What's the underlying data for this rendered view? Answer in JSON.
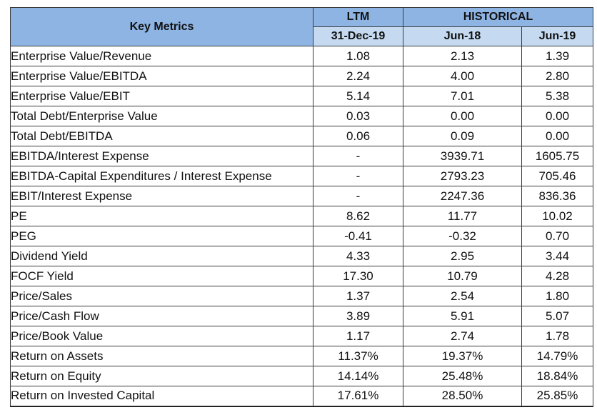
{
  "table": {
    "key_header": "Key Metrics",
    "group_ltm": "LTM",
    "group_historical": "HISTORICAL",
    "periods": [
      "31-Dec-19",
      "Jun-18",
      "Jun-19"
    ],
    "rows": [
      {
        "label": "Enterprise Value/Revenue",
        "values": [
          "1.08",
          "2.13",
          "1.39"
        ]
      },
      {
        "label": "Enterprise Value/EBITDA",
        "values": [
          "2.24",
          "4.00",
          "2.80"
        ]
      },
      {
        "label": "Enterprise Value/EBIT",
        "values": [
          "5.14",
          "7.01",
          "5.38"
        ]
      },
      {
        "label": "Total Debt/Enterprise Value",
        "values": [
          "0.03",
          "0.00",
          "0.00"
        ]
      },
      {
        "label": "Total Debt/EBITDA",
        "values": [
          "0.06",
          "0.09",
          "0.00"
        ]
      },
      {
        "label": "EBITDA/Interest Expense",
        "values": [
          "-",
          "3939.71",
          "1605.75"
        ]
      },
      {
        "label": "EBITDA-Capital Expenditures / Interest Expense",
        "values": [
          "-",
          "2793.23",
          "705.46"
        ]
      },
      {
        "label": "EBIT/Interest Expense",
        "values": [
          "-",
          "2247.36",
          "836.36"
        ]
      },
      {
        "label": "PE",
        "values": [
          "8.62",
          "11.77",
          "10.02"
        ]
      },
      {
        "label": "PEG",
        "values": [
          "-0.41",
          "-0.32",
          "0.70"
        ]
      },
      {
        "label": "Dividend Yield",
        "values": [
          "4.33",
          "2.95",
          "3.44"
        ]
      },
      {
        "label": "FOCF Yield",
        "values": [
          "17.30",
          "10.79",
          "4.28"
        ]
      },
      {
        "label": "Price/Sales",
        "values": [
          "1.37",
          "2.54",
          "1.80"
        ]
      },
      {
        "label": "Price/Cash Flow",
        "values": [
          "3.89",
          "5.91",
          "5.07"
        ]
      },
      {
        "label": "Price/Book Value",
        "values": [
          "1.17",
          "2.74",
          "1.78"
        ]
      },
      {
        "label": "Return on Assets",
        "values": [
          "11.37%",
          "19.37%",
          "14.79%"
        ]
      },
      {
        "label": "Return on Equity",
        "values": [
          "14.14%",
          "25.48%",
          "18.84%"
        ]
      },
      {
        "label": "Return on Invested Capital",
        "values": [
          "17.61%",
          "28.50%",
          "25.85%"
        ]
      }
    ]
  },
  "colors": {
    "header_fill": "#8eb4e3",
    "subheader_fill": "#c5d9f1",
    "border": "#3a3a3a"
  }
}
